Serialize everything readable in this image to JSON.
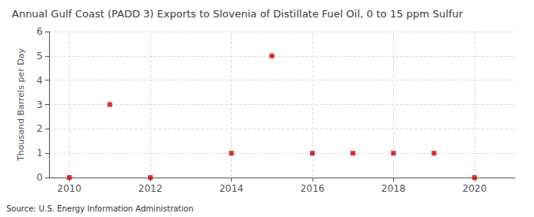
{
  "chart_data": {
    "type": "scatter",
    "title": "Annual Gulf Coast (PADD 3) Exports to Slovenia of Distillate Fuel Oil, 0 to 15 ppm Sulfur",
    "ylabel": "Thousand Barrels per Day",
    "source": "Source: U.S. Energy Information Administration",
    "x": [
      2010,
      2011,
      2012,
      2013,
      2014,
      2015,
      2016,
      2017,
      2018,
      2019,
      2020
    ],
    "values": [
      0.0,
      3.0,
      0.0,
      null,
      1.0,
      5.0,
      1.0,
      1.0,
      1.0,
      1.0,
      0.0
    ],
    "xlim": [
      2009.5,
      2021.0
    ],
    "xticks": [
      2010,
      2012,
      2014,
      2016,
      2018,
      2020
    ],
    "ylim": [
      0,
      6
    ],
    "yticks": [
      0,
      1,
      2,
      3,
      4,
      5,
      6
    ],
    "color": "#cc0000",
    "marker": "square",
    "grid": true
  }
}
